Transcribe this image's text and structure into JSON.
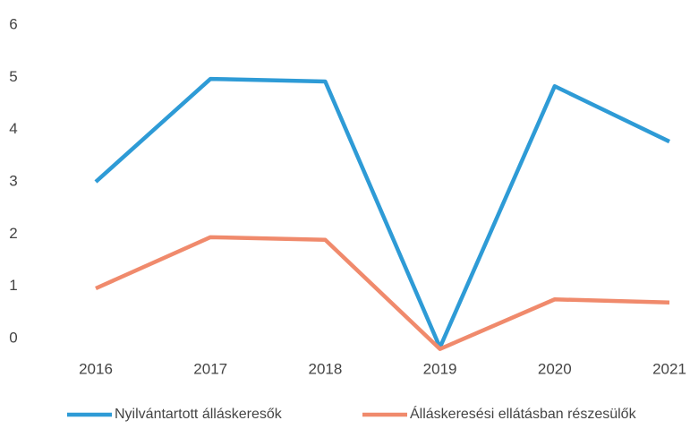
{
  "chart_data": {
    "type": "line",
    "categories": [
      "2016",
      "2017",
      "2018",
      "2019",
      "2020",
      "2021"
    ],
    "series": [
      {
        "name": "Nyilvántartott álláskeresők",
        "color": "#2e9bd6",
        "values": [
          3.0,
          4.97,
          4.92,
          -0.17,
          4.83,
          3.77
        ]
      },
      {
        "name": "Álláskeresési ellátásban részesülők",
        "color": "#f08a6c",
        "values": [
          0.96,
          1.94,
          1.89,
          -0.2,
          0.75,
          0.69
        ]
      }
    ],
    "ylim": [
      -0.3,
      6
    ],
    "yticks": [
      0,
      1,
      2,
      3,
      4,
      5,
      6
    ],
    "grid": false,
    "legend": "bottom"
  }
}
